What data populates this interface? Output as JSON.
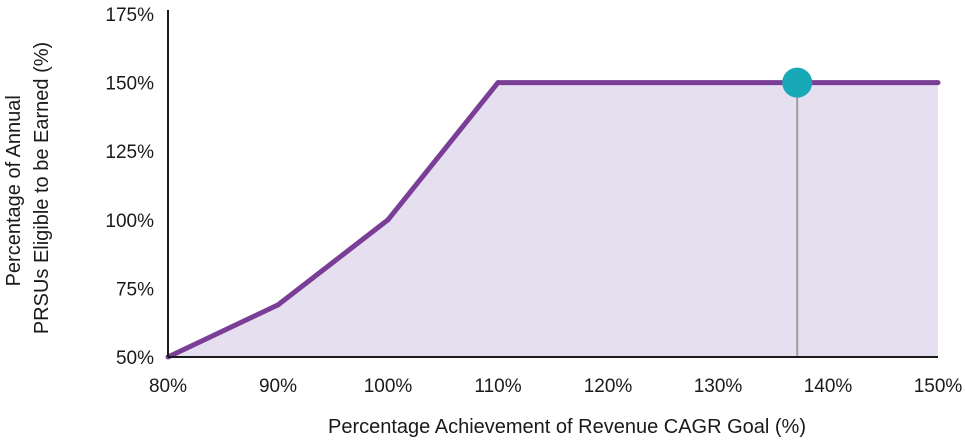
{
  "chart_data": {
    "type": "area",
    "xlabel": "Percentage Achievement of Revenue CAGR Goal (%)",
    "ylabel_lines": [
      "Percentage of Annual",
      "PRSUs Eligible to be Earned (%)"
    ],
    "x_ticks": [
      "80%",
      "90%",
      "100%",
      "110%",
      "120%",
      "130%",
      "140%",
      "150%"
    ],
    "y_ticks": [
      "50%",
      "75%",
      "100%",
      "125%",
      "150%",
      "175%"
    ],
    "xlim": [
      80,
      150
    ],
    "ylim": [
      50,
      175
    ],
    "series": [
      {
        "x": [
          80,
          90,
          100,
          110,
          150
        ],
        "y": [
          50,
          69,
          100,
          150,
          150
        ]
      }
    ],
    "marker": {
      "x": 137.2,
      "y": 150
    },
    "grid": false,
    "colors": {
      "line": "#7a3e96",
      "fill": "#e6dff0",
      "marker": "#18a9b8",
      "marker_drop": "#9e9e9e",
      "axis": "#1a1a1a"
    }
  }
}
